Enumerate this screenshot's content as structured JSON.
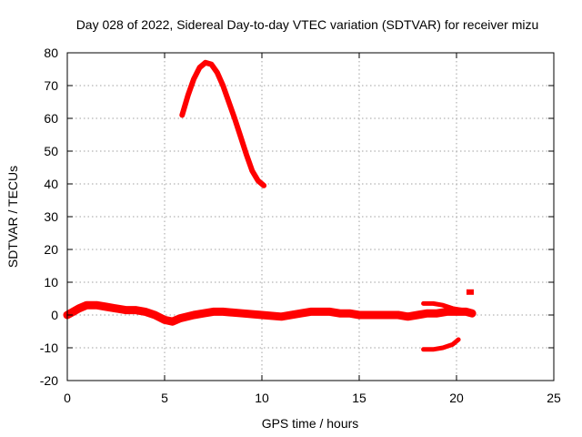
{
  "chart_data": {
    "type": "scatter",
    "title": "Day 028 of 2022, Sidereal Day-to-day VTEC variation (SDTVAR) for receiver mizu",
    "xlabel": "GPS time / hours",
    "ylabel": "SDTVAR / TECUs",
    "xlim": [
      0,
      25
    ],
    "ylim": [
      -20,
      80
    ],
    "xticks": [
      0,
      5,
      10,
      15,
      20,
      25
    ],
    "yticks": [
      -20,
      -10,
      0,
      10,
      20,
      30,
      40,
      50,
      60,
      70,
      80
    ],
    "grid": true,
    "legend": "none",
    "colors": {
      "series": "#ff0000"
    },
    "series": [
      {
        "name": "arc-main",
        "x": [
          0.0,
          0.3,
          0.6,
          1.0,
          1.5,
          2.0,
          2.5,
          3.0,
          3.5,
          4.0,
          4.5,
          5.0,
          5.4,
          5.8,
          6.5,
          7.0,
          7.5,
          8.0,
          9.0,
          10.0,
          11.0,
          12.0,
          12.5,
          13.0,
          13.5,
          14.0,
          14.5,
          15.0,
          15.5,
          16.0,
          16.5,
          17.0,
          17.5,
          18.0,
          18.5,
          19.0,
          19.5,
          20.0,
          20.5,
          20.8
        ],
        "y": [
          0.0,
          1.0,
          2.0,
          3.0,
          3.0,
          2.5,
          2.0,
          1.5,
          1.5,
          1.0,
          0.0,
          -1.5,
          -2.0,
          -1.0,
          0.0,
          0.5,
          1.0,
          1.0,
          0.5,
          0.0,
          -0.5,
          0.5,
          1.0,
          1.0,
          1.0,
          0.5,
          0.5,
          0.0,
          0.0,
          0.0,
          0.0,
          0.0,
          -0.5,
          0.0,
          0.5,
          0.5,
          1.0,
          1.0,
          1.0,
          0.5
        ]
      },
      {
        "name": "arc-peak",
        "x": [
          5.9,
          6.2,
          6.5,
          6.8,
          7.1,
          7.4,
          7.7,
          8.0,
          8.3,
          8.6,
          8.9,
          9.2,
          9.5,
          9.8,
          10.1
        ],
        "y": [
          61,
          67,
          72,
          75.5,
          77,
          76.5,
          74,
          70,
          65,
          60,
          54.5,
          49,
          44,
          41,
          39.5
        ]
      },
      {
        "name": "arc-late-upper",
        "x": [
          18.3,
          18.8,
          19.3,
          19.8,
          20.3,
          20.8
        ],
        "y": [
          3.5,
          3.5,
          3.0,
          2.0,
          1.5,
          1.0
        ]
      },
      {
        "name": "arc-late-lower",
        "x": [
          18.3,
          18.8,
          19.3,
          19.8,
          20.1
        ],
        "y": [
          -10.5,
          -10.5,
          -10.0,
          -9.0,
          -7.5
        ]
      },
      {
        "name": "point-isolated",
        "x": [
          20.7
        ],
        "y": [
          7.0
        ]
      }
    ]
  }
}
